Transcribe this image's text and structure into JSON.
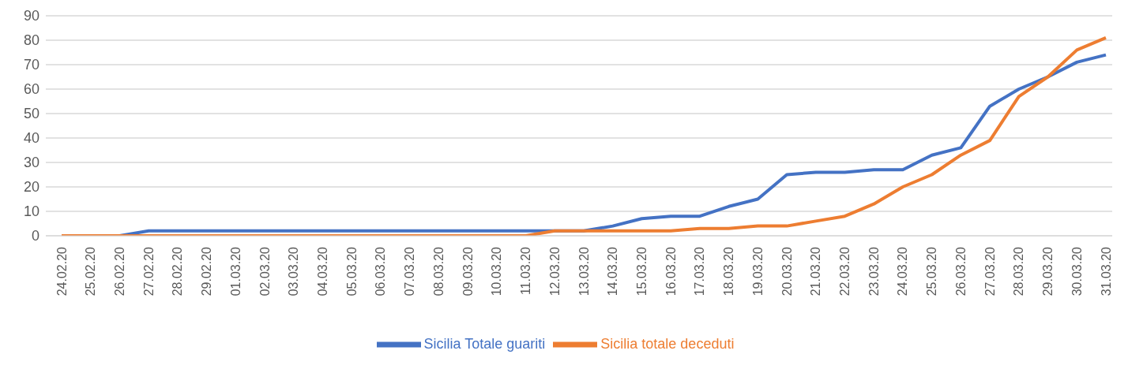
{
  "chart_data": {
    "type": "line",
    "categories": [
      "24.02.20",
      "25.02.20",
      "26.02.20",
      "27.02.20",
      "28.02.20",
      "29.02.20",
      "01.03.20",
      "02.03.20",
      "03.03.20",
      "04.03.20",
      "05.03.20",
      "06.03.20",
      "07.03.20",
      "08.03.20",
      "09.03.20",
      "10.03.20",
      "11.03.20",
      "12.03.20",
      "13.03.20",
      "14.03.20",
      "15.03.20",
      "16.03.20",
      "17.03.20",
      "18.03.20",
      "19.03.20",
      "20.03.20",
      "21.03.20",
      "22.03.20",
      "23.03.20",
      "24.03.20",
      "25.03.20",
      "26.03.20",
      "27.03.20",
      "28.03.20",
      "29.03.20",
      "30.03.20",
      "31.03.20"
    ],
    "series": [
      {
        "name": "Sicilia Totale guariti",
        "color": "#4472c4",
        "values": [
          0,
          0,
          0,
          2,
          2,
          2,
          2,
          2,
          2,
          2,
          2,
          2,
          2,
          2,
          2,
          2,
          2,
          2,
          2,
          4,
          7,
          8,
          8,
          12,
          15,
          25,
          26,
          26,
          27,
          27,
          33,
          36,
          53,
          60,
          65,
          71,
          74
        ]
      },
      {
        "name": "Sicilia totale deceduti",
        "color": "#ed7d31",
        "values": [
          0,
          0,
          0,
          0,
          0,
          0,
          0,
          0,
          0,
          0,
          0,
          0,
          0,
          0,
          0,
          0,
          0,
          2,
          2,
          2,
          2,
          2,
          3,
          3,
          4,
          4,
          6,
          8,
          13,
          20,
          25,
          33,
          39,
          57,
          65,
          76,
          81
        ]
      }
    ],
    "ylim": [
      0,
      90
    ],
    "yticks": [
      0,
      10,
      20,
      30,
      40,
      50,
      60,
      70,
      80,
      90
    ],
    "grid": "y",
    "legend": "bottom",
    "marker": "none",
    "line_style": "solid"
  }
}
